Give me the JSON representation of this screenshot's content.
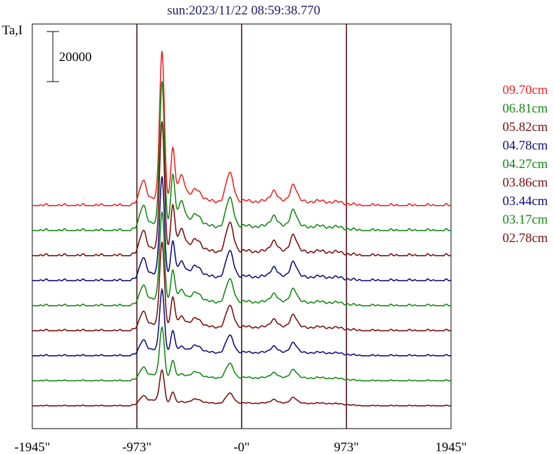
{
  "chart_data": {
    "type": "line",
    "title": "sun:2023/11/22 08:59:38.770",
    "ylabel": "Ta,I",
    "scale_bar_label": "20000",
    "scale_bar_value": 20000,
    "x_ticks": [
      {
        "value": -1945,
        "label": "-1945\""
      },
      {
        "value": -973,
        "label": "-973\""
      },
      {
        "value": 0,
        "label": "-0\""
      },
      {
        "value": 973,
        "label": "973\""
      },
      {
        "value": 1945,
        "label": "1945\""
      }
    ],
    "xlim": [
      -1945,
      1945
    ],
    "vertical_lines": [
      -973,
      0,
      973
    ],
    "legend_position": "right",
    "series": [
      {
        "name": "09.70cm",
        "color": "#ee2222",
        "baseline": 85000,
        "peak_amp": 60000,
        "detail": 1.0
      },
      {
        "name": "06.81cm",
        "color": "#118811",
        "baseline": 75000,
        "peak_amp": 58000,
        "detail": 1.0
      },
      {
        "name": "05.82cm",
        "color": "#7a0c0c",
        "baseline": 65000,
        "peak_amp": 52000,
        "detail": 1.0
      },
      {
        "name": "04.78cm",
        "color": "#0c0c7a",
        "baseline": 55000,
        "peak_amp": 40000,
        "detail": 0.9
      },
      {
        "name": "04.27cm",
        "color": "#118811",
        "baseline": 45000,
        "peak_amp": 36000,
        "detail": 0.8
      },
      {
        "name": "03.86cm",
        "color": "#7a0c0c",
        "baseline": 35000,
        "peak_amp": 34000,
        "detail": 0.75
      },
      {
        "name": "03.44cm",
        "color": "#0c0c7a",
        "baseline": 25000,
        "peak_amp": 25000,
        "detail": 0.6
      },
      {
        "name": "03.17cm",
        "color": "#118811",
        "baseline": 15000,
        "peak_amp": 20000,
        "detail": 0.5
      },
      {
        "name": "02.78cm",
        "color": "#7a0c0c",
        "baseline": 5000,
        "peak_amp": 13000,
        "detail": 0.35
      }
    ]
  }
}
